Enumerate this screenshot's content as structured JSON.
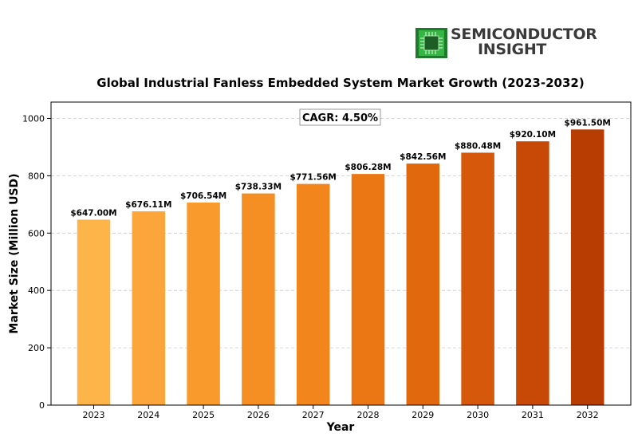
{
  "logo": {
    "line1": "SEMICONDUCTOR",
    "line2": "INSIGHT",
    "icon": "microchip-icon",
    "icon_color": "#2e9e3a"
  },
  "chart_data": {
    "type": "bar",
    "title": "Global Industrial Fanless Embedded System Market Growth (2023-2032)",
    "xlabel": "Year",
    "ylabel": "Market Size (Million USD)",
    "categories": [
      "2023",
      "2024",
      "2025",
      "2026",
      "2027",
      "2028",
      "2029",
      "2030",
      "2031",
      "2032"
    ],
    "values": [
      647.0,
      676.11,
      706.54,
      738.33,
      771.56,
      806.28,
      842.56,
      880.48,
      920.1,
      961.5
    ],
    "data_labels": [
      "$647.00M",
      "$676.11M",
      "$706.54M",
      "$738.33M",
      "$771.56M",
      "$806.28M",
      "$842.56M",
      "$880.48M",
      "$920.10M",
      "$961.50M"
    ],
    "ylim": [
      0,
      1057
    ],
    "yticks": [
      0,
      200,
      400,
      600,
      800,
      1000
    ],
    "grid": "horizontal dashed",
    "annotation": "CAGR: 4.50%",
    "bar_colors": [
      "#fdb54a",
      "#fca53a",
      "#f99a2c",
      "#f58f23",
      "#f2851c",
      "#eb7714",
      "#e2680e",
      "#d6580a",
      "#c84805",
      "#b73d03"
    ]
  }
}
